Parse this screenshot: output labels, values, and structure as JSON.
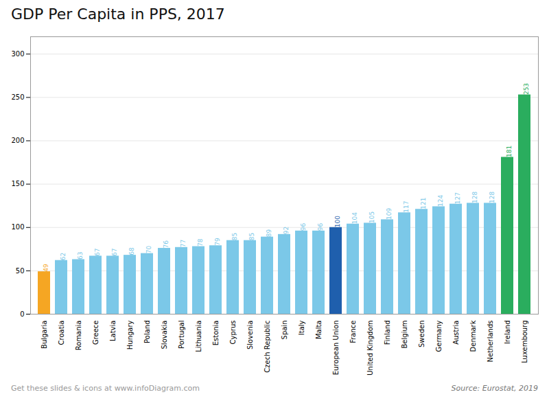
{
  "chart_data": {
    "type": "bar",
    "title": "GDP Per Capita in PPS, 2017",
    "categories": [
      "Bulgaria",
      "Croatia",
      "Romania",
      "Greece",
      "Latvia",
      "Hungary",
      "Poland",
      "Slovakia",
      "Portugal",
      "Lithuania",
      "Estonia",
      "Cyprus",
      "Slovenia",
      "Czech Republic",
      "Spain",
      "Italy",
      "Malta",
      "European Union",
      "France",
      "United Kingdom",
      "Finland",
      "Belgium",
      "Sweden",
      "Germany",
      "Austria",
      "Denmark",
      "Netherlands",
      "Ireland",
      "Luxembourg"
    ],
    "values": [
      49,
      62,
      63,
      67,
      67,
      68,
      70,
      76,
      77,
      78,
      79,
      85,
      85,
      89,
      92,
      96,
      96,
      100,
      104,
      105,
      109,
      117,
      121,
      124,
      127,
      128,
      128,
      181,
      253
    ],
    "colors": [
      "#F5A623",
      "#7BC8E8",
      "#7BC8E8",
      "#7BC8E8",
      "#7BC8E8",
      "#7BC8E8",
      "#7BC8E8",
      "#7BC8E8",
      "#7BC8E8",
      "#7BC8E8",
      "#7BC8E8",
      "#7BC8E8",
      "#7BC8E8",
      "#7BC8E8",
      "#7BC8E8",
      "#7BC8E8",
      "#7BC8E8",
      "#1F5FAD",
      "#7BC8E8",
      "#7BC8E8",
      "#7BC8E8",
      "#7BC8E8",
      "#7BC8E8",
      "#7BC8E8",
      "#7BC8E8",
      "#7BC8E8",
      "#7BC8E8",
      "#2AAD5E",
      "#2AAD5E"
    ],
    "ylim": [
      0,
      320
    ],
    "yticks": [
      0,
      50,
      100,
      150,
      200,
      250,
      300
    ],
    "grid": true,
    "data_labels": true,
    "annotations": [
      "Get these slides & icons at www.infoDiagram.com",
      "Source: Eurostat, 2019"
    ]
  }
}
